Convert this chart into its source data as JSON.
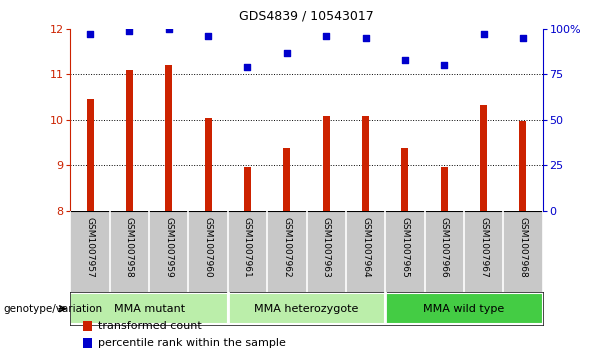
{
  "title": "GDS4839 / 10543017",
  "samples": [
    "GSM1007957",
    "GSM1007958",
    "GSM1007959",
    "GSM1007960",
    "GSM1007961",
    "GSM1007962",
    "GSM1007963",
    "GSM1007964",
    "GSM1007965",
    "GSM1007966",
    "GSM1007967",
    "GSM1007968"
  ],
  "bar_values": [
    10.45,
    11.1,
    11.2,
    10.05,
    8.97,
    9.37,
    10.08,
    10.08,
    9.37,
    8.95,
    10.32,
    9.97
  ],
  "dot_values": [
    97,
    99,
    100,
    96,
    79,
    87,
    96,
    95,
    83,
    80,
    97,
    95
  ],
  "ylim_left": [
    8,
    12
  ],
  "ylim_right": [
    0,
    100
  ],
  "yticks_left": [
    8,
    9,
    10,
    11,
    12
  ],
  "yticks_right": [
    0,
    25,
    50,
    75,
    100
  ],
  "bar_color": "#CC2200",
  "dot_color": "#0000CC",
  "bar_bottom": 8,
  "groups": [
    {
      "label": "MMA mutant",
      "start": 0,
      "end": 4,
      "color": "#BBEEAA"
    },
    {
      "label": "MMA heterozygote",
      "start": 4,
      "end": 8,
      "color": "#BBEEAA"
    },
    {
      "label": "MMA wild type",
      "start": 8,
      "end": 12,
      "color": "#44CC44"
    }
  ],
  "legend_bar_label": "transformed count",
  "legend_dot_label": "percentile rank within the sample",
  "genotype_label": "genotype/variation",
  "axis_label_color_left": "#CC2200",
  "axis_label_color_right": "#0000CC",
  "tick_area_color": "#C8C8C8",
  "bar_width": 0.18
}
